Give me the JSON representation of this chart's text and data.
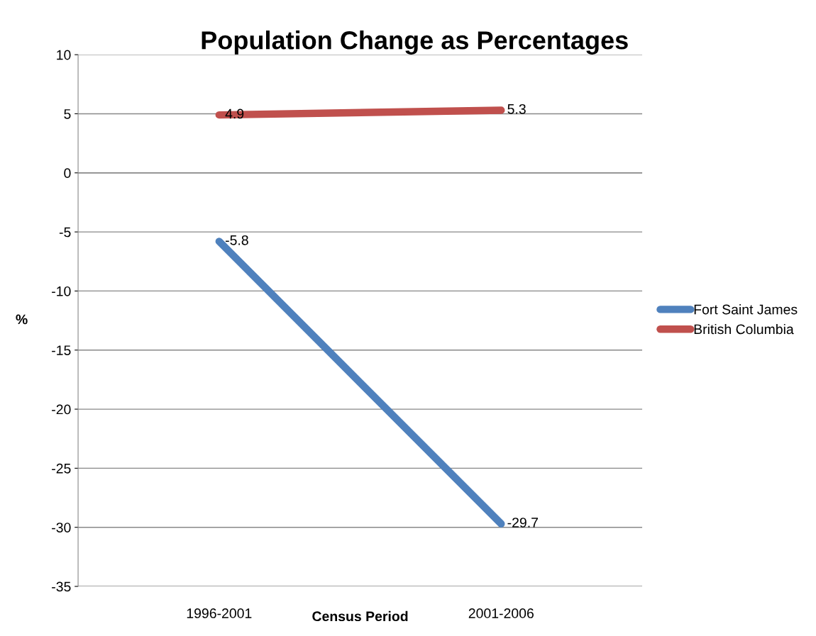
{
  "chart_data": {
    "type": "line",
    "title": "Population Change as Percentages",
    "xlabel": "Census Period",
    "ylabel": "%",
    "categories": [
      "1996-2001",
      "2001-2006"
    ],
    "series": [
      {
        "name": "Fort Saint James",
        "color": "#4f81bd",
        "values": [
          -5.8,
          -29.7
        ]
      },
      {
        "name": "British Columbia",
        "color": "#c0504d",
        "values": [
          4.9,
          5.3
        ]
      }
    ],
    "ylim": [
      -35,
      10
    ],
    "yticks": [
      -35,
      -30,
      -25,
      -20,
      -15,
      -10,
      -5,
      0,
      5,
      10
    ],
    "grid": "y",
    "legend": "right",
    "data_labels": true,
    "marker": "none",
    "line_style": "solid"
  }
}
